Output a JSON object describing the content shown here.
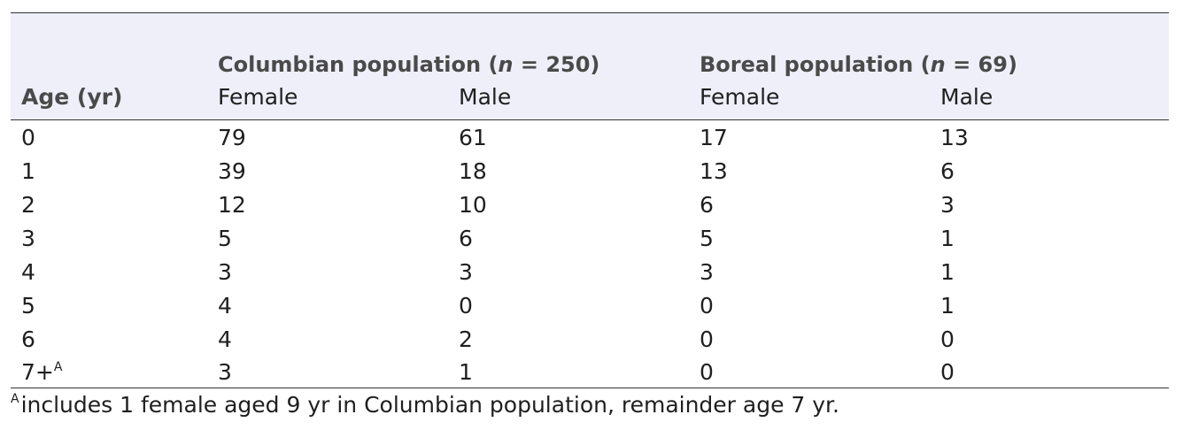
{
  "table": {
    "group_headers": {
      "columbian": {
        "prefix": "Columbian population (",
        "n_symbol": "n",
        "suffix": " = 250)"
      },
      "boreal": {
        "prefix": "Boreal population (",
        "n_symbol": "n",
        "suffix": " = 69)"
      }
    },
    "column_headers": {
      "age": "Age (yr)",
      "col_female": "Female",
      "col_male": "Male",
      "bor_female": "Female",
      "bor_male": "Male"
    },
    "rows": [
      {
        "age": "0",
        "age_sup": "",
        "col_female": "79",
        "col_male": "61",
        "bor_female": "17",
        "bor_male": "13"
      },
      {
        "age": "1",
        "age_sup": "",
        "col_female": "39",
        "col_male": "18",
        "bor_female": "13",
        "bor_male": "6"
      },
      {
        "age": "2",
        "age_sup": "",
        "col_female": "12",
        "col_male": "10",
        "bor_female": "6",
        "bor_male": "3"
      },
      {
        "age": "3",
        "age_sup": "",
        "col_female": "5",
        "col_male": "6",
        "bor_female": "5",
        "bor_male": "1"
      },
      {
        "age": "4",
        "age_sup": "",
        "col_female": "3",
        "col_male": "3",
        "bor_female": "3",
        "bor_male": "1"
      },
      {
        "age": "5",
        "age_sup": "",
        "col_female": "4",
        "col_male": "0",
        "bor_female": "0",
        "bor_male": "1"
      },
      {
        "age": "6",
        "age_sup": "",
        "col_female": "4",
        "col_male": "2",
        "bor_female": "0",
        "bor_male": "0"
      },
      {
        "age": "7+",
        "age_sup": "A",
        "col_female": "3",
        "col_male": "1",
        "bor_female": "0",
        "bor_male": "0"
      }
    ]
  },
  "footnote": {
    "marker": "A",
    "text": "includes 1 female aged 9 yr in Columbian population, remainder age 7 yr."
  }
}
